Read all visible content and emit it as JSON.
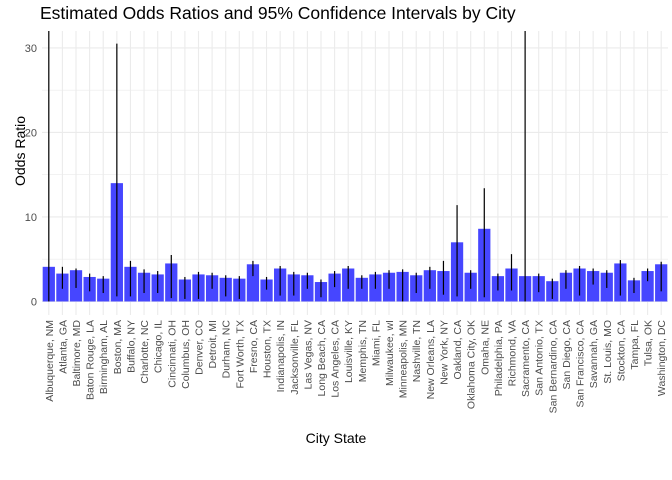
{
  "chart_data": {
    "type": "bar",
    "title": "Estimated Odds Ratios and 95% Confidence Intervals by City",
    "xlabel": "City State",
    "ylabel": "Odds Ratio",
    "ylim": [
      -1.6,
      32
    ],
    "yticks": [
      0,
      10,
      20,
      30
    ],
    "grid": true,
    "bar_color": "#4646ff",
    "errorbar_color": "#000000",
    "categories": [
      "Albuquerque, NM",
      "Atlanta, GA",
      "Baltimore, MD",
      "Baton Rouge, LA",
      "Birmingham, AL",
      "Boston, MA",
      "Buffalo, NY",
      "Charlotte, NC",
      "Chicago, IL",
      "Cincinnati, OH",
      "Columbus, OH",
      "Denver, CO",
      "Detroit, MI",
      "Durham, NC",
      "Fort Worth, TX",
      "Fresno, CA",
      "Houston, TX",
      "Indianapolis, IN",
      "Jacksonville, FL",
      "Las Vegas, NV",
      "Long Beach, CA",
      "Los Angeles, CA",
      "Louisville, KY",
      "Memphis, TN",
      "Miami, FL",
      "Milwaukee, wI",
      "Minneapolis, MN",
      "Nashville, TN",
      "New Orleans, LA",
      "New York, NY",
      "Oakland, CA",
      "Oklahoma City, OK",
      "Omaha, NE",
      "Philadelphia, PA",
      "Richmond, VA",
      "Sacramento, CA",
      "San Antonio, TX",
      "San Bernardino, CA",
      "San Diego, CA",
      "San Francisco, CA",
      "Savannah, GA",
      "St. Louis, MO",
      "Stockton, CA",
      "Tampa, FL",
      "Tulsa, OK",
      "Washington, DC"
    ],
    "values": [
      4.1,
      3.3,
      3.7,
      2.9,
      2.7,
      14.0,
      4.1,
      3.4,
      3.2,
      4.5,
      2.6,
      3.2,
      3.1,
      2.8,
      2.7,
      4.4,
      2.6,
      3.9,
      3.2,
      3.1,
      2.3,
      3.3,
      3.9,
      2.8,
      3.2,
      3.4,
      3.5,
      3.1,
      3.7,
      3.6,
      7.0,
      3.4,
      8.6,
      3.0,
      3.9,
      3.0,
      3.0,
      2.4,
      3.4,
      3.9,
      3.6,
      3.4,
      4.5,
      2.5,
      3.6,
      4.4
    ],
    "ci_lower": [
      0.0,
      1.5,
      1.6,
      1.2,
      1.0,
      0.6,
      0.6,
      1.0,
      1.0,
      0.4,
      0.3,
      0.3,
      1.5,
      0.6,
      0.3,
      3.0,
      1.4,
      0.7,
      0.7,
      1.5,
      0.5,
      1.7,
      1.5,
      1.5,
      1.5,
      1.5,
      0.0,
      1.0,
      1.5,
      0.8,
      0.6,
      1.5,
      0.5,
      1.3,
      1.3,
      0.0,
      1.1,
      0.3,
      1.5,
      0.7,
      2.0,
      1.6,
      0.7,
      1.0,
      2.4,
      1.2
    ],
    "ci_upper": [
      32.0,
      4.1,
      3.9,
      3.3,
      3.0,
      30.5,
      4.8,
      3.8,
      3.6,
      5.5,
      2.9,
      3.5,
      3.4,
      3.1,
      3.0,
      4.8,
      2.9,
      4.2,
      3.5,
      3.4,
      2.6,
      3.6,
      4.2,
      3.1,
      3.5,
      3.7,
      3.8,
      3.4,
      4.1,
      4.8,
      11.4,
      3.7,
      13.4,
      3.3,
      5.6,
      32.0,
      3.3,
      2.7,
      3.7,
      4.2,
      3.9,
      3.7,
      4.9,
      2.8,
      3.9,
      4.7
    ]
  }
}
